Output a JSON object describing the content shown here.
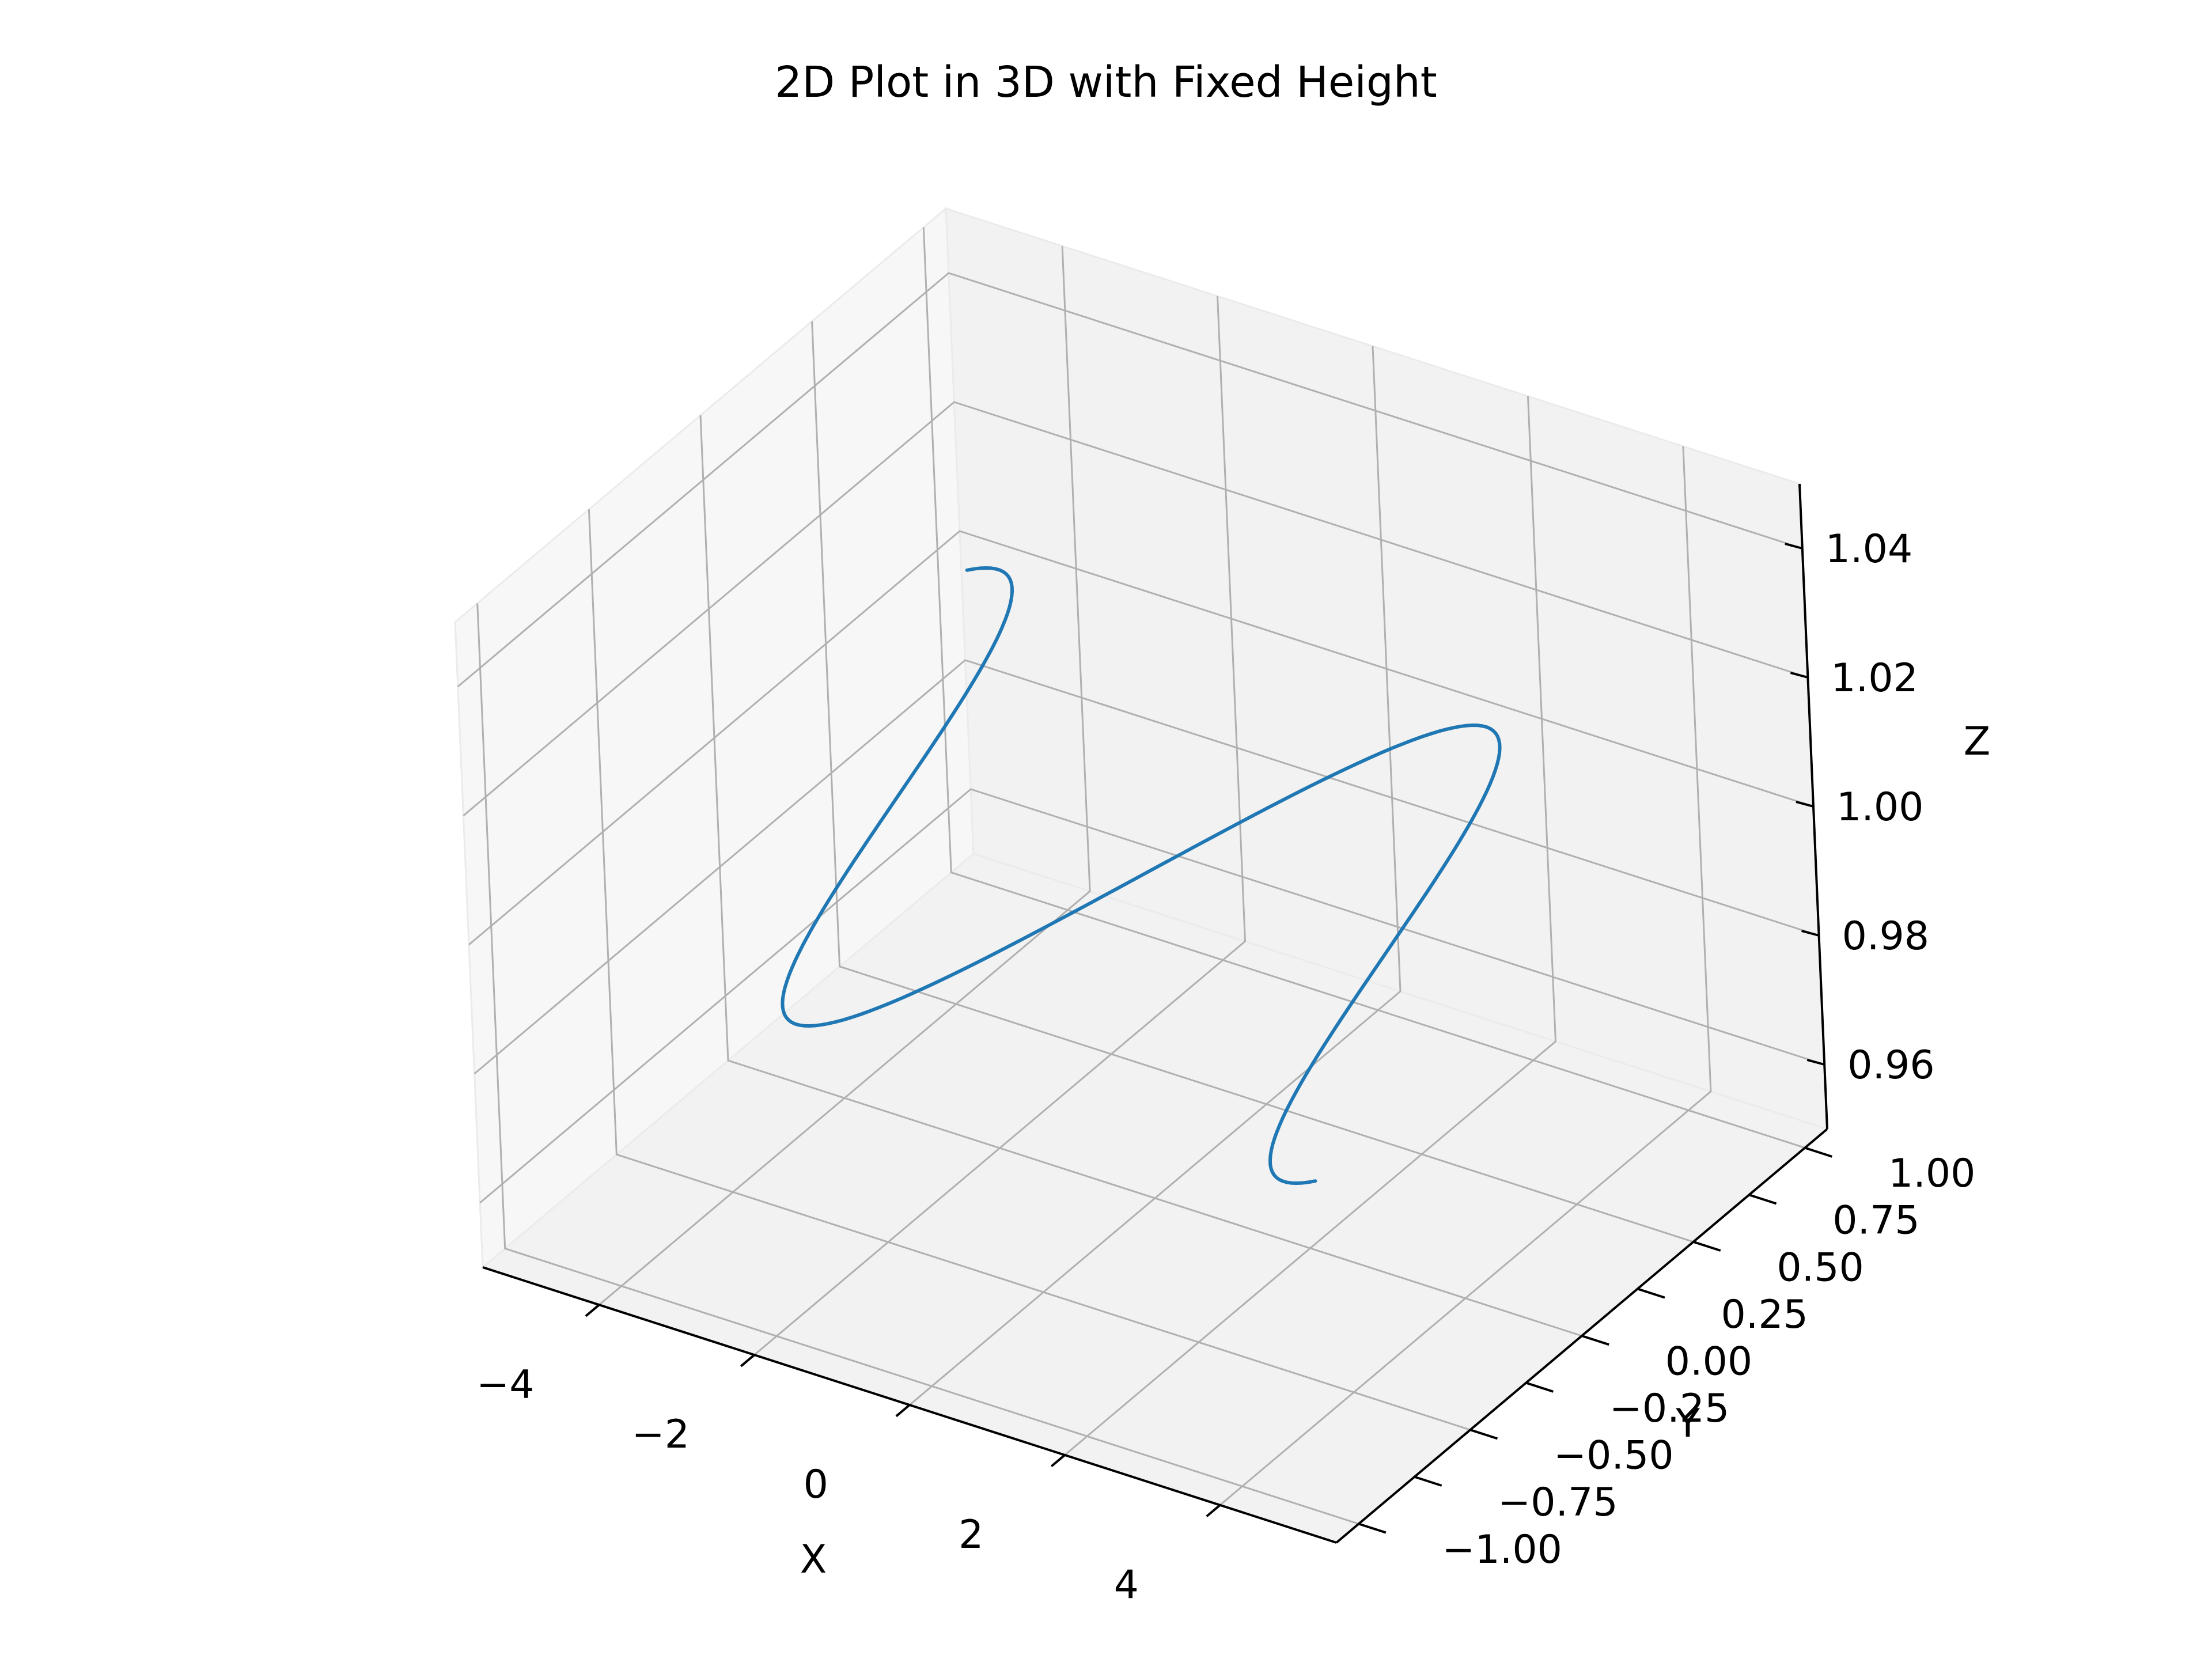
{
  "chart_data": {
    "type": "line",
    "projection": "3d",
    "title": "2D Plot in 3D with Fixed Height",
    "xlabel": "X",
    "ylabel": "Y",
    "zlabel": "Z",
    "xlim": [
      -5.5,
      5.5
    ],
    "ylim": [
      -1.1,
      1.1
    ],
    "zlim": [
      0.95,
      1.05
    ],
    "x_ticks": [
      "−4",
      "−2",
      "0",
      "2",
      "4"
    ],
    "x_tick_values": [
      -4,
      -2,
      0,
      2,
      4
    ],
    "y_ticks": [
      "−1.00",
      "−0.75",
      "−0.50",
      "−0.25",
      "0.00",
      "0.25",
      "0.50",
      "0.75",
      "1.00"
    ],
    "y_tick_values": [
      -1,
      -0.75,
      -0.5,
      -0.25,
      0,
      0.25,
      0.5,
      0.75,
      1
    ],
    "z_ticks": [
      "0.96",
      "0.98",
      "1.00",
      "1.02",
      "1.04"
    ],
    "z_tick_values": [
      0.96,
      0.98,
      1.0,
      1.02,
      1.04
    ],
    "grid": true,
    "series": [
      {
        "function": "y = sin(x)",
        "x_range": [
          -5,
          5
        ],
        "z": 1.0,
        "points": 200,
        "color": "#1f77b4"
      }
    ]
  }
}
